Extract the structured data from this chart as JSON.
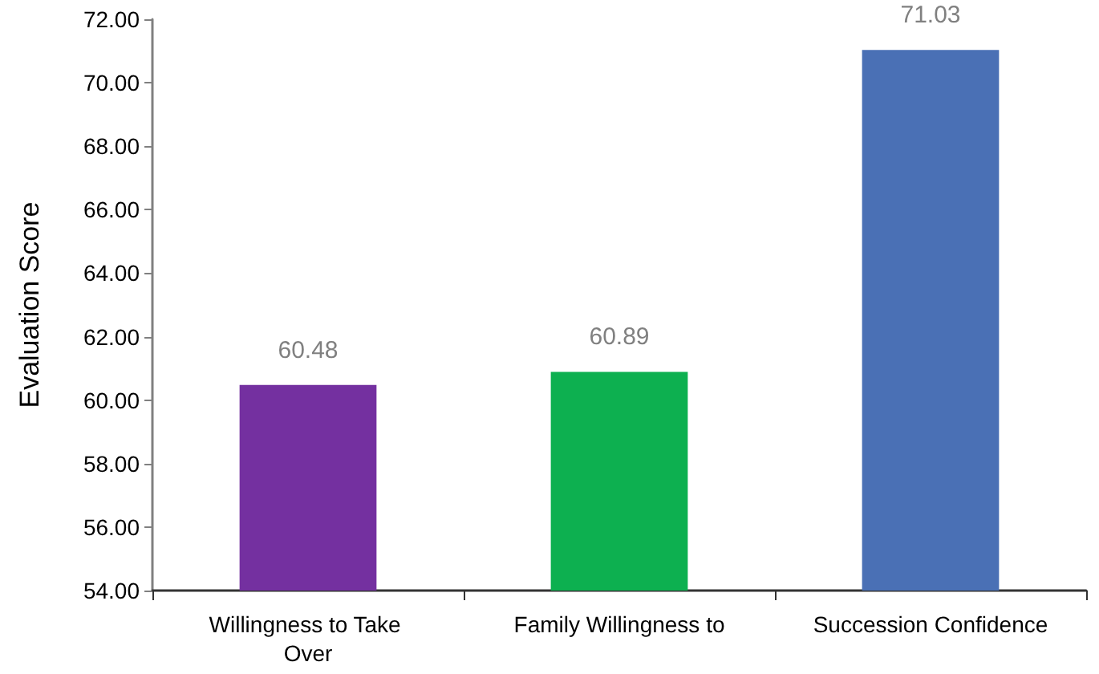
{
  "chart_data": {
    "type": "bar",
    "ylabel": "Evaluation Score",
    "categories": [
      "Willingness to Take Over",
      "Family Willingness to",
      "Succession Confidence"
    ],
    "values": [
      60.48,
      60.89,
      71.03
    ],
    "colors": [
      "#7430a0",
      "#0db050",
      "#4a70b5"
    ],
    "data_labels": true,
    "grid": false,
    "ylim": [
      54,
      72
    ],
    "yticks": [
      {
        "value": 54,
        "label": "54.00"
      },
      {
        "value": 56,
        "label": "56.00"
      },
      {
        "value": 58,
        "label": "58.00"
      },
      {
        "value": 60,
        "label": "60.00"
      },
      {
        "value": 62,
        "label": "62.00"
      },
      {
        "value": 64,
        "label": "64.00"
      },
      {
        "value": 66,
        "label": "66.00"
      },
      {
        "value": 68,
        "label": "68.00"
      },
      {
        "value": 70,
        "label": "70.00"
      },
      {
        "value": 72,
        "label": "72.00"
      }
    ]
  }
}
